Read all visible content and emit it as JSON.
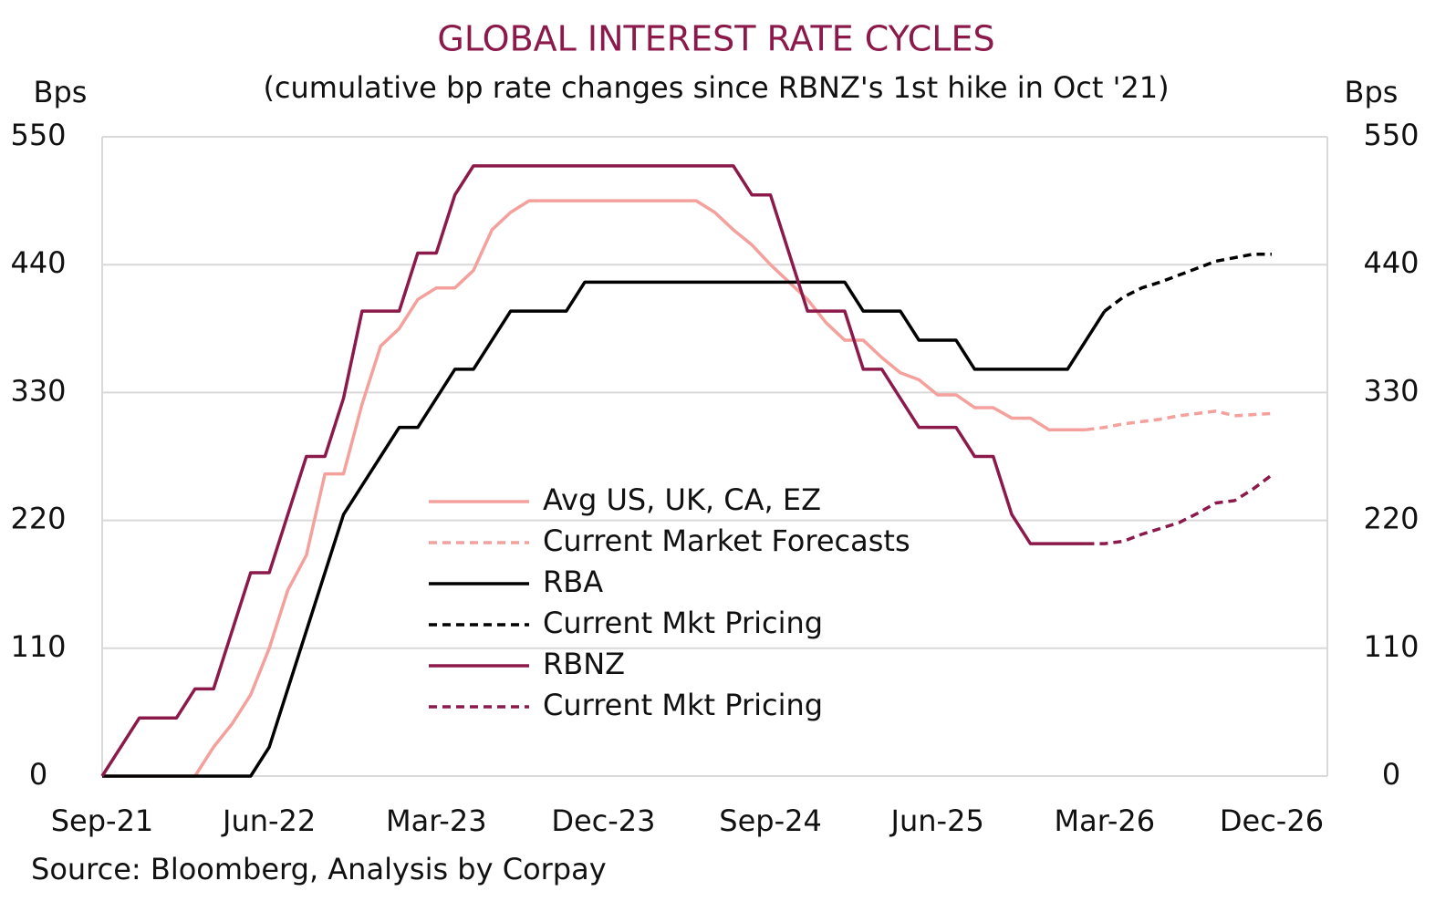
{
  "chart_data": {
    "type": "line",
    "title": "GLOBAL INTEREST RATE CYCLES",
    "subtitle": "(cumulative bp rate changes since RBNZ's 1st hike in Oct '21)",
    "y_label": "Bps",
    "y2_label": "Bps",
    "source": "Source: Bloomberg, Analysis by Corpay",
    "categories": [
      "Sep-21",
      null,
      null,
      null,
      null,
      null,
      null,
      null,
      null,
      "Jun-22",
      null,
      null,
      null,
      null,
      null,
      null,
      null,
      null,
      "Mar-23",
      null,
      null,
      null,
      null,
      null,
      null,
      null,
      null,
      "Dec-23",
      null,
      null,
      null,
      null,
      null,
      null,
      null,
      null,
      "Sep-24",
      null,
      null,
      null,
      null,
      null,
      null,
      null,
      null,
      "Jun-25",
      null,
      null,
      null,
      null,
      null,
      null,
      null,
      null,
      "Mar-26",
      null,
      null,
      null,
      null,
      null,
      null,
      null,
      null,
      "Dec-26",
      null,
      null,
      null
    ],
    "ylim": [
      0,
      550
    ],
    "yticks": [
      0,
      110,
      220,
      330,
      440,
      550
    ],
    "y2lim": [
      0,
      550
    ],
    "y2ticks": [
      0,
      110,
      220,
      330,
      440,
      550
    ],
    "grid": true,
    "legend": "center",
    "series": [
      {
        "name": "Avg US, UK, CA, EZ",
        "color": "#f4a09c",
        "dashed": false,
        "values": [
          0,
          0,
          0,
          0,
          0,
          0,
          25,
          45,
          70,
          110,
          160,
          190,
          260,
          260,
          320,
          370,
          385,
          410,
          420,
          420,
          435,
          470,
          485,
          495,
          495,
          495,
          495,
          495,
          495,
          495,
          495,
          495,
          495,
          485,
          470,
          457,
          440,
          425,
          410,
          390,
          375,
          375,
          360,
          347,
          341,
          328,
          328,
          317,
          317,
          308,
          308,
          298,
          298,
          298,
          null,
          null,
          null,
          null,
          null,
          null,
          null,
          null,
          null,
          null,
          null,
          null,
          null
        ]
      },
      {
        "name": "Current Market Forecasts",
        "color": "#f4a09c",
        "dashed": true,
        "values": [
          null,
          null,
          null,
          null,
          null,
          null,
          null,
          null,
          null,
          null,
          null,
          null,
          null,
          null,
          null,
          null,
          null,
          null,
          null,
          null,
          null,
          null,
          null,
          null,
          null,
          null,
          null,
          null,
          null,
          null,
          null,
          null,
          null,
          null,
          null,
          null,
          null,
          null,
          null,
          null,
          null,
          null,
          null,
          null,
          null,
          null,
          null,
          null,
          null,
          null,
          null,
          null,
          null,
          298,
          300,
          303,
          305,
          307,
          310,
          312,
          314,
          310,
          311,
          312,
          null,
          null,
          null
        ]
      },
      {
        "name": "RBA",
        "color": "#000000",
        "dashed": false,
        "values": [
          0,
          0,
          0,
          0,
          0,
          0,
          0,
          0,
          0,
          25,
          75,
          125,
          175,
          225,
          250,
          275,
          300,
          300,
          325,
          350,
          350,
          375,
          400,
          400,
          400,
          400,
          425,
          425,
          425,
          425,
          425,
          425,
          425,
          425,
          425,
          425,
          425,
          425,
          425,
          425,
          425,
          400,
          400,
          400,
          375,
          375,
          375,
          350,
          350,
          350,
          350,
          350,
          350,
          375,
          400,
          null,
          null,
          null,
          null,
          null,
          null,
          null,
          null,
          null,
          null,
          null,
          null
        ]
      },
      {
        "name": "Current Mkt Pricing",
        "color": "#000000",
        "dashed": true,
        "values": [
          null,
          null,
          null,
          null,
          null,
          null,
          null,
          null,
          null,
          null,
          null,
          null,
          null,
          null,
          null,
          null,
          null,
          null,
          null,
          null,
          null,
          null,
          null,
          null,
          null,
          null,
          null,
          null,
          null,
          null,
          null,
          null,
          null,
          null,
          null,
          null,
          null,
          null,
          null,
          null,
          null,
          null,
          null,
          null,
          null,
          null,
          null,
          null,
          null,
          null,
          null,
          null,
          null,
          null,
          400,
          412,
          420,
          425,
          431,
          437,
          443,
          446,
          449,
          449,
          null,
          null,
          null
        ]
      },
      {
        "name": "RBNZ",
        "color": "#8b1a4a",
        "dashed": false,
        "values": [
          0,
          25,
          50,
          50,
          50,
          75,
          75,
          125,
          175,
          175,
          225,
          275,
          275,
          325,
          400,
          400,
          400,
          450,
          450,
          500,
          525,
          525,
          525,
          525,
          525,
          525,
          525,
          525,
          525,
          525,
          525,
          525,
          525,
          525,
          525,
          500,
          500,
          450,
          400,
          400,
          400,
          350,
          350,
          325,
          300,
          300,
          300,
          275,
          275,
          225,
          200,
          200,
          200,
          200,
          null,
          null,
          null,
          null,
          null,
          null,
          null,
          null,
          null,
          null,
          null,
          null,
          null
        ]
      },
      {
        "name": "Current Mkt Pricing",
        "color": "#8b1a4a",
        "dashed": true,
        "values": [
          null,
          null,
          null,
          null,
          null,
          null,
          null,
          null,
          null,
          null,
          null,
          null,
          null,
          null,
          null,
          null,
          null,
          null,
          null,
          null,
          null,
          null,
          null,
          null,
          null,
          null,
          null,
          null,
          null,
          null,
          null,
          null,
          null,
          null,
          null,
          null,
          null,
          null,
          null,
          null,
          null,
          null,
          null,
          null,
          null,
          null,
          null,
          null,
          null,
          null,
          null,
          null,
          null,
          200,
          200,
          202,
          208,
          213,
          218,
          226,
          235,
          237,
          247,
          259,
          null,
          null,
          null
        ]
      }
    ]
  }
}
